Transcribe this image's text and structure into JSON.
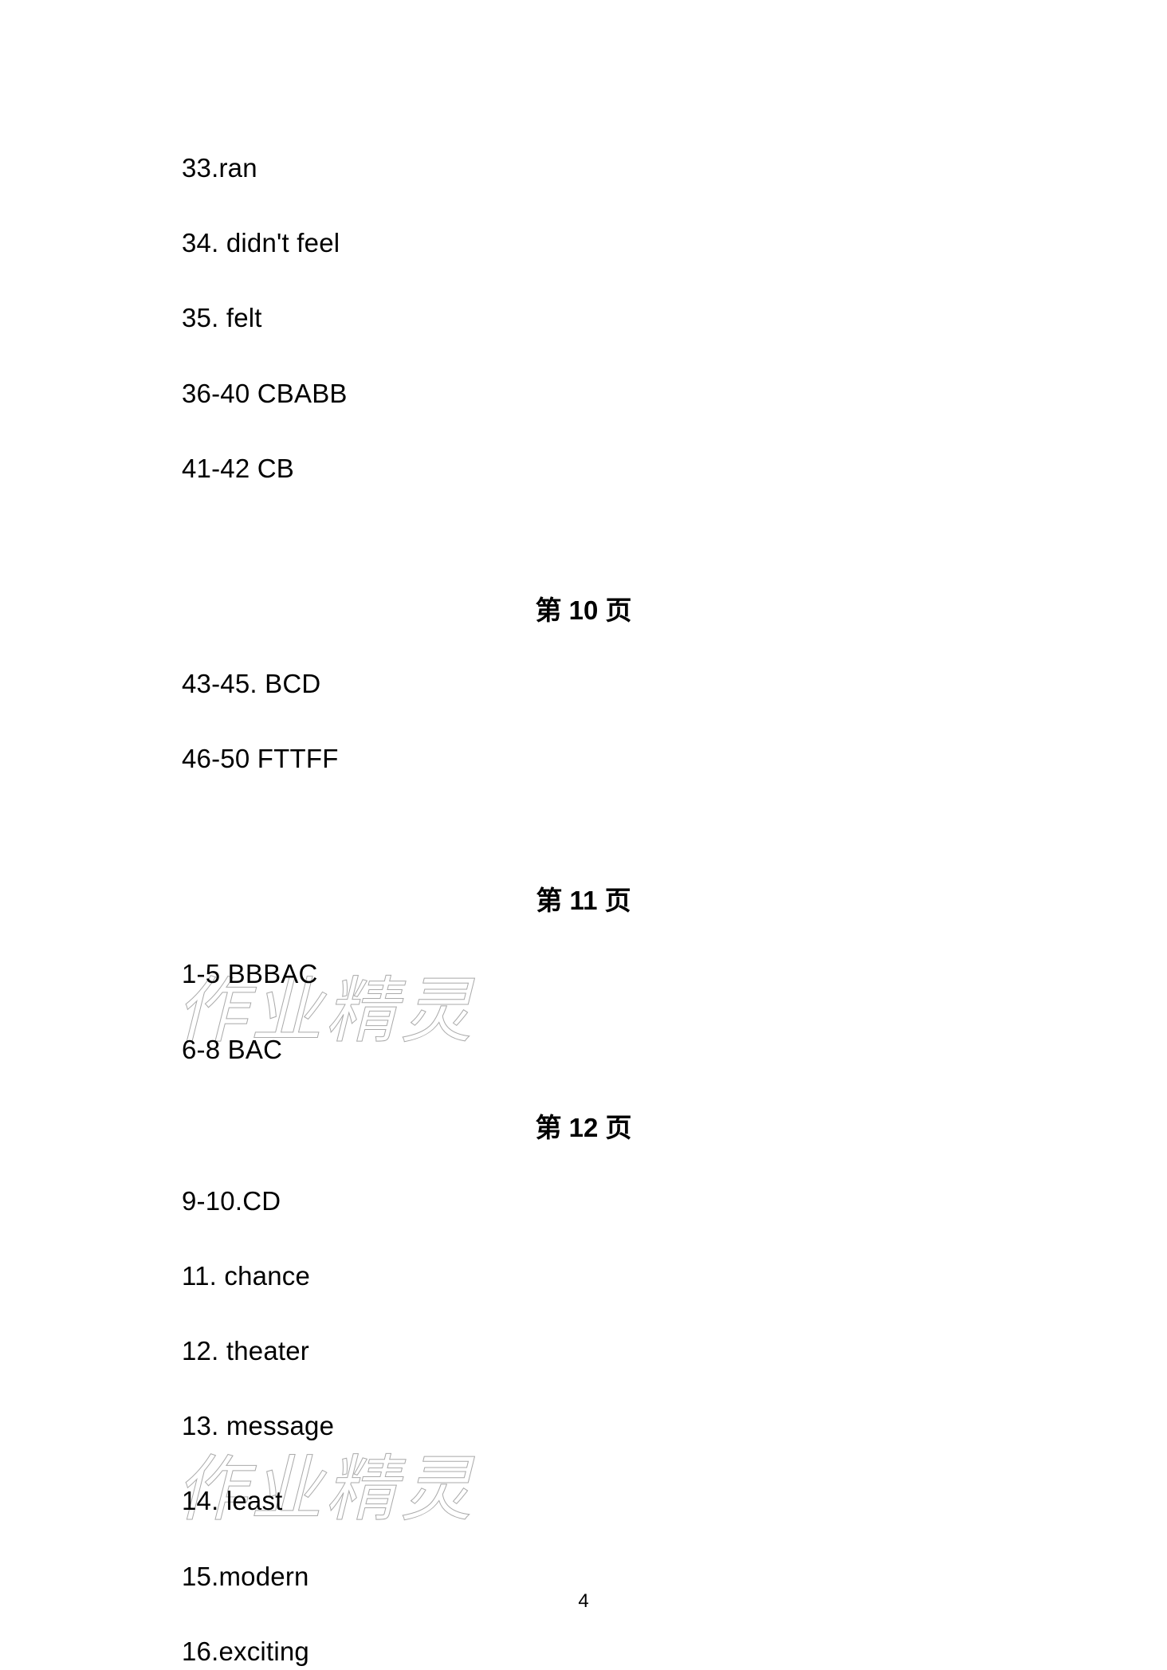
{
  "page": {
    "background_color": "#ffffff",
    "text_color": "#000000",
    "watermark_color": "#cccccc",
    "font_size_body": 33,
    "font_size_heading": 33,
    "page_number": "4"
  },
  "watermark": {
    "text": "作业精灵"
  },
  "answers": {
    "block1": {
      "lines": [
        "33.ran",
        "34. didn't feel",
        "35. felt",
        "36-40 CBABB",
        "41-42 CB"
      ]
    },
    "page10": {
      "heading": "第 10 页",
      "lines": [
        "43-45. BCD",
        "46-50 FTTFF"
      ]
    },
    "page11": {
      "heading": "第 11 页",
      "lines": [
        "1-5 BBBAC",
        "6-8 BAC"
      ]
    },
    "page12": {
      "heading": "第 12 页",
      "lines": [
        "9-10.CD",
        "11. chance",
        "12. theater",
        "13. message",
        "14. least",
        "15.modern",
        "16.exciting"
      ]
    }
  }
}
